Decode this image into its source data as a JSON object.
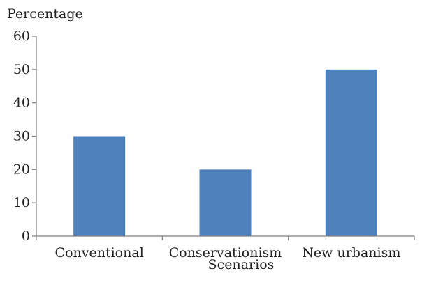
{
  "chart_data": {
    "type": "bar",
    "categories": [
      "Conventional",
      "Conservationism",
      "New urbanism"
    ],
    "values": [
      30,
      20,
      50
    ],
    "ylabel": "Percentage",
    "xlabel": "Scenarios",
    "ylim": [
      0,
      60
    ],
    "yticks": [
      0,
      10,
      20,
      30,
      40,
      50,
      60
    ],
    "grid": false,
    "bar_color": "#4f81bd",
    "axis_color": "#7f7f7f"
  }
}
